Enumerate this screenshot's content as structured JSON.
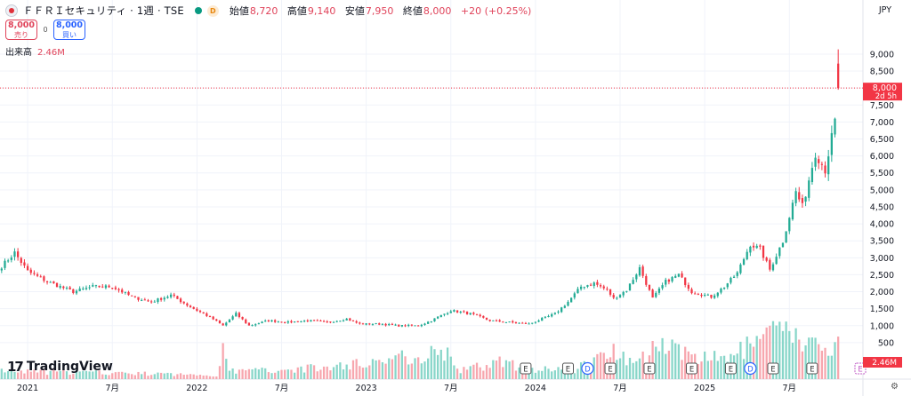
{
  "header": {
    "title": "ＦＦＲＩセキュリティ · 1週 · TSE",
    "d_badge": "D",
    "ohlc": [
      {
        "label": "始値",
        "value": "8,720"
      },
      {
        "label": "高値",
        "value": "9,140"
      },
      {
        "label": "安値",
        "value": "7,950"
      },
      {
        "label": "終値",
        "value": "8,000"
      }
    ],
    "change": "+20 (+0.25%)"
  },
  "trade": {
    "sell_price": "8,000",
    "sell_label": "売り",
    "spread": "0",
    "buy_price": "8,000",
    "buy_label": "買い"
  },
  "volume": {
    "label": "出来高",
    "value": "2.46M"
  },
  "currency": "JPY",
  "brand": "TradingView",
  "colors": {
    "up": "#22ab94",
    "down": "#f23645",
    "vol_up": "#88d6c9",
    "vol_down": "#f7a6ae",
    "last_price": "#f23645"
  },
  "chart_data": {
    "type": "candlestick",
    "interval": "1 week",
    "ylim": [
      0,
      9600
    ],
    "y_ticks": [
      "9,000",
      "8,500",
      "8,000",
      "7,500",
      "7,000",
      "6,500",
      "6,000",
      "5,500",
      "5,000",
      "4,500",
      "4,000",
      "3,500",
      "3,000",
      "2,500",
      "2,000",
      "1,500",
      "1,000",
      "500"
    ],
    "y_tick_values": [
      9000,
      8500,
      8000,
      7500,
      7000,
      6500,
      6000,
      5500,
      5000,
      4500,
      4000,
      3500,
      3000,
      2500,
      2000,
      1500,
      1000,
      500
    ],
    "x_ticks": [
      {
        "label": "2021",
        "week": 8
      },
      {
        "label": "7月",
        "week": 34
      },
      {
        "label": "2022",
        "week": 60
      },
      {
        "label": "7月",
        "week": 86
      },
      {
        "label": "2023",
        "week": 112
      },
      {
        "label": "7月",
        "week": 138
      },
      {
        "label": "2024",
        "week": 164
      },
      {
        "label": "7月",
        "week": 190
      },
      {
        "label": "2025",
        "week": 216
      },
      {
        "label": "7月",
        "week": 242
      }
    ],
    "x_range": [
      0,
      257
    ],
    "last_price": {
      "value": 8000,
      "label": "8,000",
      "countdown": "2d 5h"
    },
    "volume_last_label": "2.46M",
    "event_markers": [
      {
        "week": 161,
        "type": "E"
      },
      {
        "week": 174,
        "type": "E"
      },
      {
        "week": 180,
        "type": "D"
      },
      {
        "week": 187,
        "type": "E"
      },
      {
        "week": 199,
        "type": "E"
      },
      {
        "week": 212,
        "type": "E"
      },
      {
        "week": 224,
        "type": "E"
      },
      {
        "week": 230,
        "type": "D"
      },
      {
        "week": 237,
        "type": "E"
      },
      {
        "week": 249,
        "type": "E"
      }
    ],
    "future_marker": {
      "week": 262,
      "type": "E"
    },
    "close_anchors": [
      [
        0,
        2750
      ],
      [
        4,
        3150
      ],
      [
        8,
        2600
      ],
      [
        14,
        2300
      ],
      [
        22,
        2000
      ],
      [
        28,
        2150
      ],
      [
        34,
        2150
      ],
      [
        40,
        1850
      ],
      [
        46,
        1700
      ],
      [
        52,
        1900
      ],
      [
        58,
        1550
      ],
      [
        64,
        1250
      ],
      [
        68,
        1000
      ],
      [
        72,
        1350
      ],
      [
        76,
        1000
      ],
      [
        82,
        1150
      ],
      [
        88,
        1100
      ],
      [
        94,
        1150
      ],
      [
        100,
        1100
      ],
      [
        106,
        1200
      ],
      [
        110,
        1050
      ],
      [
        116,
        1050
      ],
      [
        122,
        1000
      ],
      [
        128,
        1000
      ],
      [
        132,
        1150
      ],
      [
        138,
        1450
      ],
      [
        144,
        1350
      ],
      [
        150,
        1150
      ],
      [
        156,
        1100
      ],
      [
        162,
        1050
      ],
      [
        166,
        1200
      ],
      [
        170,
        1350
      ],
      [
        174,
        1700
      ],
      [
        178,
        2150
      ],
      [
        182,
        2250
      ],
      [
        186,
        2050
      ],
      [
        188,
        1800
      ],
      [
        192,
        2050
      ],
      [
        196,
        2700
      ],
      [
        200,
        1800
      ],
      [
        204,
        2300
      ],
      [
        208,
        2500
      ],
      [
        212,
        2000
      ],
      [
        218,
        1850
      ],
      [
        222,
        2150
      ],
      [
        226,
        2550
      ],
      [
        230,
        3400
      ],
      [
        233,
        3250
      ],
      [
        236,
        2650
      ],
      [
        240,
        3500
      ],
      [
        244,
        4950
      ],
      [
        246,
        4500
      ],
      [
        250,
        6100
      ],
      [
        253,
        5600
      ],
      [
        256,
        7000
      ],
      [
        258,
        7500
      ],
      [
        259,
        8000
      ]
    ],
    "volume_anchors": [
      [
        0,
        0.3
      ],
      [
        30,
        0.25
      ],
      [
        66,
        0.15
      ],
      [
        68,
        1.3
      ],
      [
        70,
        0.3
      ],
      [
        100,
        0.45
      ],
      [
        138,
        1.1
      ],
      [
        140,
        0.3
      ],
      [
        154,
        0.7
      ],
      [
        160,
        0.4
      ],
      [
        176,
        0.35
      ],
      [
        190,
        1.3
      ],
      [
        192,
        0.7
      ],
      [
        200,
        1.1
      ],
      [
        206,
        1.6
      ],
      [
        212,
        0.7
      ],
      [
        226,
        1.0
      ],
      [
        236,
        1.7
      ],
      [
        240,
        1.8
      ],
      [
        248,
        1.4
      ],
      [
        252,
        1.1
      ],
      [
        257,
        1.3
      ],
      [
        259,
        0.9
      ]
    ]
  }
}
